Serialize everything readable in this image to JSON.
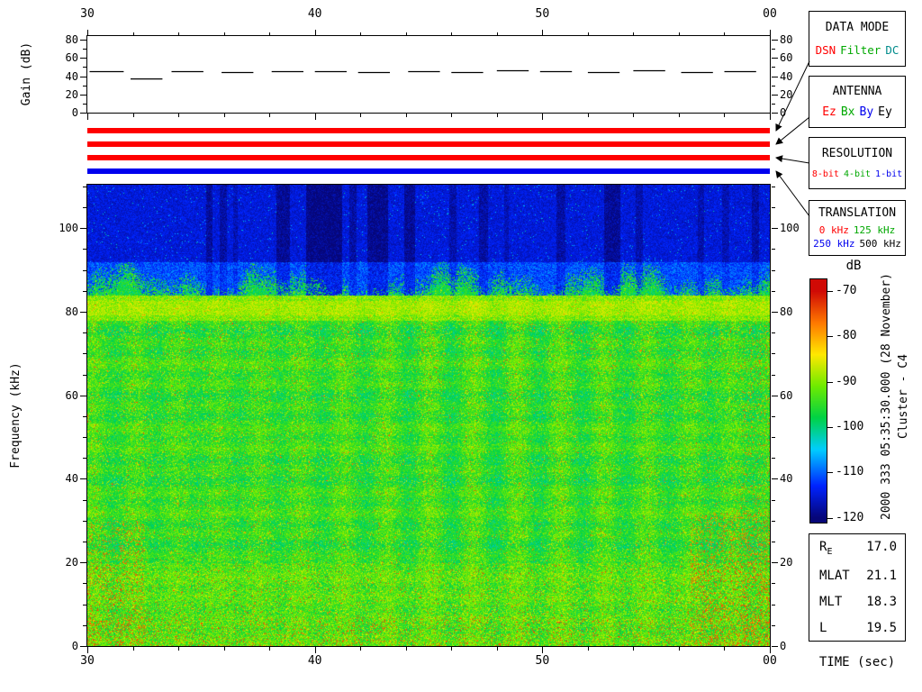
{
  "labels": {
    "gain_ylabel": "Gain (dB)",
    "freq_ylabel": "Frequency (kHz)",
    "time_xlabel": "TIME (sec)",
    "colorbar_label": "dB"
  },
  "side_text": {
    "line1": "2000 333 05:35:30.000 (28 November)",
    "line2": "Cluster - C4"
  },
  "legend_boxes": [
    {
      "title": "DATA MODE",
      "lines": [
        [
          {
            "label": "DSN",
            "color": "#ff0000"
          },
          {
            "label": "Filter",
            "color": "#00a800"
          },
          {
            "label": "DC",
            "color": "#008b8b"
          }
        ]
      ]
    },
    {
      "title": "ANTENNA",
      "lines": [
        [
          {
            "label": "Ez",
            "color": "#ff0000"
          },
          {
            "label": "Bx",
            "color": "#00a800"
          },
          {
            "label": "By",
            "color": "#0000ee"
          },
          {
            "label": "Ey",
            "color": "#000000"
          }
        ]
      ]
    },
    {
      "title": "RESOLUTION",
      "lines": [
        [
          {
            "label": "8-bit",
            "color": "#ff0000"
          },
          {
            "label": "4-bit",
            "color": "#00a800"
          },
          {
            "label": "1-bit",
            "color": "#0000ee"
          }
        ]
      ]
    },
    {
      "title": "TRANSLATION",
      "lines": [
        [
          {
            "label": "0 kHz",
            "color": "#ff0000"
          },
          {
            "label": "125 kHz",
            "color": "#00a800"
          }
        ],
        [
          {
            "label": "250 kHz",
            "color": "#0000ee"
          },
          {
            "label": "500 kHz",
            "color": "#000000"
          }
        ]
      ]
    }
  ],
  "status_bars": [
    {
      "name": "data-mode-bar",
      "color": "#ff0000"
    },
    {
      "name": "antenna-bar",
      "color": "#ff0000"
    },
    {
      "name": "resolution-bar",
      "color": "#ff0000"
    },
    {
      "name": "translation-bar",
      "color": "#0000ee"
    }
  ],
  "ephemeris": {
    "rows": [
      {
        "label": "R",
        "sub": "E",
        "value": "17.0"
      },
      {
        "label": "MLAT",
        "sub": "",
        "value": "21.1"
      },
      {
        "label": "MLT",
        "sub": "",
        "value": "18.3"
      },
      {
        "label": "L",
        "sub": "",
        "value": "19.5"
      }
    ]
  },
  "chart_data": [
    {
      "type": "line",
      "title": "Receiver gain steps",
      "ylabel": "Gain (dB)",
      "y_range": [
        0,
        84
      ],
      "y_ticks": [
        0,
        20,
        40,
        60,
        80
      ],
      "x_range": [
        30,
        60
      ],
      "x_tick_values": [
        30,
        40,
        50,
        60
      ],
      "x_tick_labels": [
        "30",
        "40",
        "50",
        "00"
      ],
      "segments": [
        {
          "t0": 30.1,
          "t1": 31.6,
          "db": 45
        },
        {
          "t0": 31.9,
          "t1": 33.3,
          "db": 37
        },
        {
          "t0": 33.7,
          "t1": 35.1,
          "db": 45
        },
        {
          "t0": 35.9,
          "t1": 37.3,
          "db": 44
        },
        {
          "t0": 38.1,
          "t1": 39.5,
          "db": 45
        },
        {
          "t0": 40.0,
          "t1": 41.4,
          "db": 45
        },
        {
          "t0": 41.9,
          "t1": 43.3,
          "db": 44
        },
        {
          "t0": 44.1,
          "t1": 45.5,
          "db": 45
        },
        {
          "t0": 46.0,
          "t1": 47.4,
          "db": 44
        },
        {
          "t0": 48.0,
          "t1": 49.4,
          "db": 46
        },
        {
          "t0": 49.9,
          "t1": 51.3,
          "db": 45
        },
        {
          "t0": 52.0,
          "t1": 53.4,
          "db": 44
        },
        {
          "t0": 54.0,
          "t1": 55.4,
          "db": 46
        },
        {
          "t0": 56.1,
          "t1": 57.5,
          "db": 44
        },
        {
          "t0": 58.0,
          "t1": 59.4,
          "db": 45
        }
      ]
    },
    {
      "type": "heatmap",
      "title": "Cluster C4 WBD wideband spectrogram",
      "xlabel": "TIME (sec)",
      "ylabel": "Frequency (kHz)",
      "x_range": [
        30,
        60
      ],
      "x_tick_values": [
        30,
        40,
        50,
        60
      ],
      "x_tick_labels": [
        "30",
        "40",
        "50",
        "00"
      ],
      "y_range": [
        0,
        110.4
      ],
      "y_ticks": [
        0,
        20,
        40,
        60,
        80,
        100
      ],
      "colorbar": {
        "label": "dB",
        "min": -120,
        "max": -70,
        "ticks": [
          -70,
          -80,
          -90,
          -100,
          -110,
          -120
        ]
      },
      "bands": [
        {
          "f_min": 92,
          "f_max": 110.4,
          "base_db": -115.5,
          "description": "quiet dark-blue background above ~92 kHz with darker dropout streaks"
        },
        {
          "f_min": 84,
          "f_max": 92,
          "base_db": -104,
          "description": "speckled wavy transition between emission and background"
        },
        {
          "f_min": 78,
          "f_max": 84,
          "base_db": -90,
          "description": "enhanced yellow/orange emission band near 80 kHz"
        },
        {
          "f_min": 20,
          "f_max": 78,
          "base_db": -95,
          "description": "broadband green emission with vertical striping and yellow/red bursts"
        },
        {
          "f_min": 0,
          "f_max": 20,
          "base_db": -93,
          "description": "intense low-frequency emission with red bursts"
        }
      ],
      "vertical_stripe_period_sec": 1.875,
      "dropout_streaks_sec": [
        [
          35.2,
          35.5,
          0.7
        ],
        [
          35.8,
          36.1,
          0.6
        ],
        [
          36.4,
          36.6,
          0.4
        ],
        [
          38.3,
          38.9,
          0.8
        ],
        [
          39.6,
          41.2,
          1.0
        ],
        [
          41.5,
          41.8,
          0.6
        ],
        [
          42.3,
          43.2,
          0.9
        ],
        [
          43.9,
          44.4,
          0.8
        ],
        [
          45.9,
          46.2,
          0.5
        ],
        [
          47.2,
          47.6,
          0.6
        ],
        [
          48.3,
          48.5,
          0.4
        ],
        [
          50.6,
          51.0,
          0.6
        ],
        [
          52.7,
          53.4,
          0.8
        ],
        [
          54.1,
          54.4,
          0.5
        ],
        [
          56.8,
          57.1,
          0.5
        ],
        [
          57.9,
          58.2,
          0.4
        ],
        [
          59.2,
          59.5,
          0.6
        ]
      ]
    }
  ]
}
